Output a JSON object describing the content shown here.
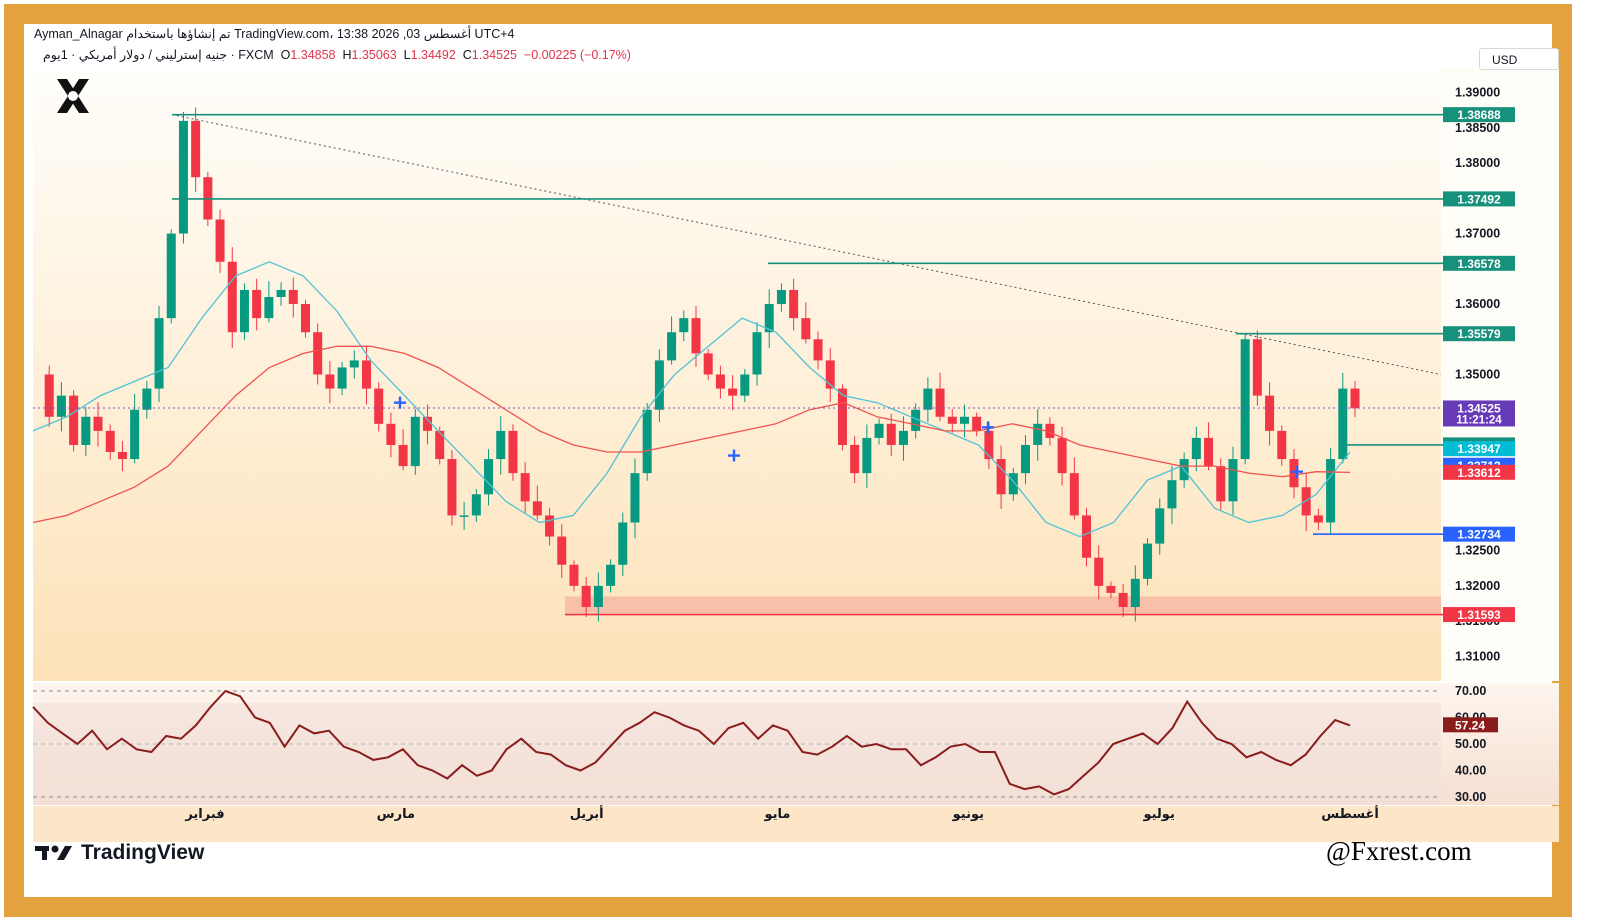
{
  "header": {
    "byline": "Ayman_Alnagar تم إنشاؤها باستخدام TradingView.com، 13:38 2026 ,03 أغسطس UTC+4",
    "symbol": "جنيه إسترليني / دولار أمريكي · 1يوم · FXCM",
    "open_label": "O",
    "open": "1.34858",
    "high_label": "H",
    "high": "1.35063",
    "low_label": "L",
    "low": "1.34492",
    "close_label": "C",
    "close": "1.34525",
    "change": "−0.00225 (−0.17%)",
    "currency": "USD"
  },
  "brand": {
    "footer_logo_text": "TradingView",
    "handle": "@Fxrest.com"
  },
  "colors": {
    "up": "#089981",
    "down": "#f23645",
    "ma_fast": "#4fc3d5",
    "ma_slow": "#ef5350",
    "level": "#17907c",
    "rsi": "#8b1c1c",
    "support_zone": "#f8b9a4",
    "frame": "#e4a23e"
  },
  "chart_data": [
    {
      "type": "candlestick",
      "symbol": "GBP/USD",
      "timeframe": "1D",
      "x_labels": [
        "فبراير",
        "مارس",
        "أبريل",
        "مايو",
        "يونيو",
        "يوليو",
        "أغسطس"
      ],
      "y_ticks": [
        "1.39000",
        "1.38500",
        "1.38000",
        "1.37000",
        "1.36000",
        "1.35000",
        "1.32500",
        "1.32000",
        "1.31500",
        "1.31000"
      ],
      "ylim": [
        1.3065,
        1.3935
      ],
      "close_path": [
        1.35,
        1.344,
        1.347,
        1.34,
        1.344,
        1.342,
        1.339,
        1.338,
        1.345,
        1.348,
        1.358,
        1.37,
        1.386,
        1.378,
        1.372,
        1.366,
        1.356,
        1.362,
        1.358,
        1.361,
        1.362,
        1.36,
        1.356,
        1.35,
        1.348,
        1.351,
        1.352,
        1.348,
        1.343,
        1.34,
        1.337,
        1.344,
        1.342,
        1.338,
        1.33,
        1.33,
        1.333,
        1.338,
        1.342,
        1.336,
        1.332,
        1.33,
        1.327,
        1.323,
        1.32,
        1.317,
        1.32,
        1.323,
        1.329,
        1.336,
        1.345,
        1.352,
        1.356,
        1.358,
        1.353,
        1.35,
        1.348,
        1.347,
        1.35,
        1.356,
        1.36,
        1.362,
        1.358,
        1.355,
        1.352,
        1.348,
        1.34,
        1.336,
        1.341,
        1.343,
        1.34,
        1.342,
        1.345,
        1.348,
        1.344,
        1.343,
        1.344,
        1.342,
        1.338,
        1.333,
        1.336,
        1.34,
        1.343,
        1.341,
        1.336,
        1.33,
        1.324,
        1.32,
        1.319,
        1.317,
        1.321,
        1.326,
        1.331,
        1.335,
        1.338,
        1.341,
        1.337,
        1.332,
        1.338,
        1.355,
        1.347,
        1.342,
        1.338,
        1.334,
        1.33,
        1.329,
        1.338,
        1.348,
        1.3452
      ],
      "moving_averages": [
        {
          "values": [
            1.342,
            1.344,
            1.347,
            1.349,
            1.351,
            1.358,
            1.364,
            1.366,
            1.364,
            1.359,
            1.352,
            1.347,
            1.342,
            1.337,
            1.332,
            1.329,
            1.33,
            1.336,
            1.344,
            1.35,
            1.354,
            1.358,
            1.356,
            1.351,
            1.347,
            1.346,
            1.344,
            1.342,
            1.34,
            1.335,
            1.329,
            1.327,
            1.329,
            1.335,
            1.337,
            1.331,
            1.329,
            1.33,
            1.333,
            1.339
          ]
        },
        {
          "values": [
            1.329,
            1.33,
            1.332,
            1.334,
            1.337,
            1.342,
            1.347,
            1.351,
            1.353,
            1.354,
            1.354,
            1.353,
            1.351,
            1.348,
            1.345,
            1.342,
            1.34,
            1.339,
            1.339,
            1.34,
            1.341,
            1.342,
            1.343,
            1.345,
            1.346,
            1.344,
            1.343,
            1.342,
            1.342,
            1.343,
            1.342,
            1.34,
            1.339,
            1.338,
            1.337,
            1.337,
            1.336,
            1.3355,
            1.3362,
            1.3361
          ]
        }
      ],
      "trendline": {
        "from": 1.38688,
        "to": 1.35,
        "style": "dotted"
      },
      "levels": [
        {
          "label": "1.38688",
          "value": 1.38688,
          "color": "#17907c"
        },
        {
          "label": "1.37492",
          "value": 1.37492,
          "color": "#17907c"
        },
        {
          "label": "1.36578",
          "value": 1.36578,
          "color": "#17907c"
        },
        {
          "label": "1.35579",
          "value": 1.35579,
          "color": "#17907c"
        },
        {
          "label": "1.34001",
          "value": 1.34001,
          "color": "#17907c"
        },
        {
          "label": "1.32734",
          "value": 1.32734,
          "color": "#2962ff"
        },
        {
          "label": "1.31593",
          "value": 1.31593,
          "color": "#f23645"
        }
      ],
      "price_badges": [
        {
          "label": "1.34525",
          "sub": "11:21:24",
          "value": 1.34525,
          "color": "#673ab7"
        },
        {
          "label": "1.33947",
          "value": 1.33947,
          "color": "#00bcd4"
        },
        {
          "label": "1.33712",
          "value": 1.33712,
          "color": "#2962ff"
        },
        {
          "label": "1.33612",
          "value": 1.33612,
          "color": "#f23645"
        }
      ],
      "support_zone": [
        1.31593,
        1.3185
      ]
    },
    {
      "type": "line",
      "indicator": "RSI",
      "y_ticks": [
        "70.00",
        "60.00",
        "50.00",
        "40.00",
        "30.00"
      ],
      "ylim": [
        27,
        73
      ],
      "current": "57.24",
      "values": [
        64,
        58,
        54,
        50,
        55,
        48,
        52,
        48,
        47,
        53,
        52,
        57,
        64,
        70,
        68,
        60,
        58,
        49,
        57,
        54,
        55,
        49,
        47,
        44,
        45,
        48,
        42,
        40,
        37,
        42,
        38,
        40,
        48,
        52,
        47,
        46,
        42,
        40,
        43,
        49,
        55,
        58,
        62,
        60,
        57,
        55,
        50,
        56,
        58,
        52,
        57,
        55,
        47,
        46,
        49,
        53,
        49,
        50,
        48,
        48,
        42,
        45,
        49,
        50,
        47,
        47,
        35,
        33,
        34,
        31,
        33,
        38,
        43,
        50,
        52,
        54,
        50,
        56,
        66,
        58,
        52,
        50,
        45,
        47,
        44,
        42,
        46,
        53,
        59,
        57
      ]
    }
  ]
}
